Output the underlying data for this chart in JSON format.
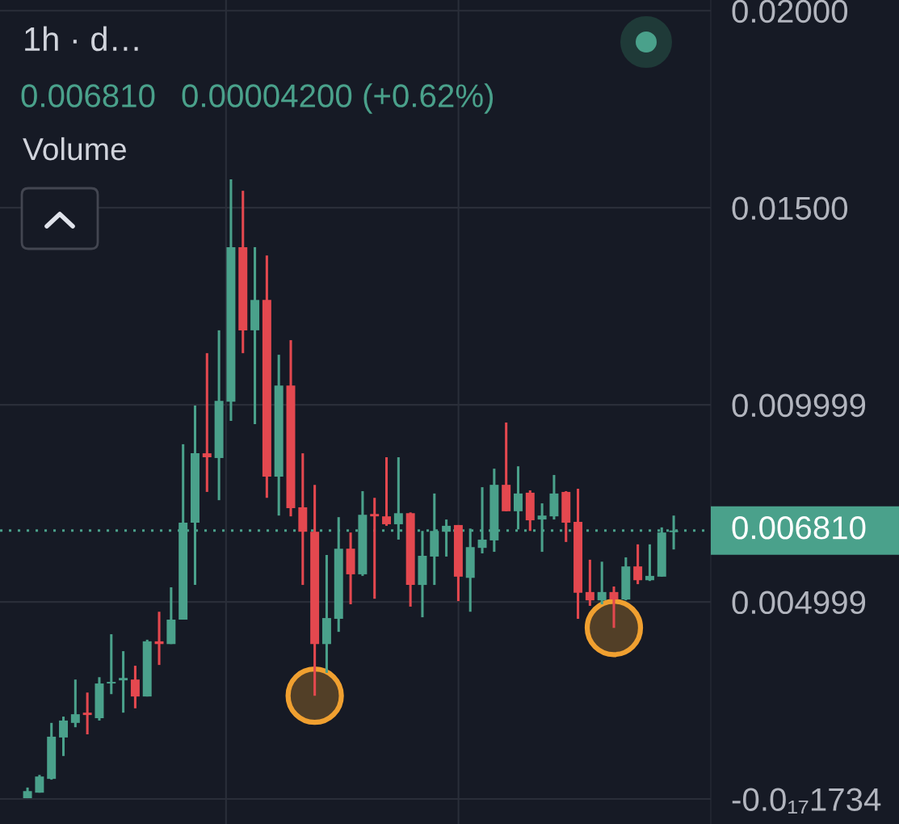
{
  "chart_data": {
    "type": "candlestick",
    "title": "1h · d…",
    "annotations": [
      "0.006810",
      "0.00004200 (+0.62%)",
      "Volume"
    ],
    "categories": [
      null,
      null,
      null,
      null,
      null,
      null,
      null,
      null,
      null,
      null,
      null,
      null,
      null,
      null,
      null,
      null,
      null,
      null,
      null,
      null,
      null,
      null,
      null,
      null,
      null,
      null,
      null,
      null,
      null,
      null,
      null,
      null,
      null,
      null,
      null,
      null,
      null,
      null,
      null,
      null,
      null,
      null,
      null,
      null,
      null,
      null,
      null,
      null,
      null,
      null,
      null,
      null,
      null,
      null,
      null
    ],
    "ohlc": [
      [
        2e-05,
        0.00029,
        2e-05,
        0.0002
      ],
      [
        0.00016,
        0.00061,
        0.00016,
        0.00057
      ],
      [
        0.00051,
        0.00193,
        0.00049,
        0.00158
      ],
      [
        0.00156,
        0.00209,
        0.00109,
        0.00199
      ],
      [
        0.00193,
        0.00303,
        0.00182,
        0.00215
      ],
      [
        0.00219,
        0.0027,
        0.00164,
        0.00213
      ],
      [
        0.00205,
        0.00309,
        0.00199,
        0.00293
      ],
      [
        0.00293,
        0.00418,
        0.00266,
        0.00297
      ],
      [
        0.00301,
        0.00375,
        0.00219,
        0.00307
      ],
      [
        0.00303,
        0.00338,
        0.0023,
        0.0026
      ],
      [
        0.0026,
        0.00404,
        0.0026,
        0.004
      ],
      [
        0.004,
        0.00475,
        0.0034,
        0.00393
      ],
      [
        0.00393,
        0.00537,
        0.00393,
        0.00455
      ],
      [
        0.00455,
        0.009,
        0.00455,
        0.00701
      ],
      [
        0.00701,
        0.00998,
        0.00543,
        0.00877
      ],
      [
        0.00877,
        0.01131,
        0.00779,
        0.00867
      ],
      [
        0.00865,
        0.01189,
        0.00758,
        0.0101
      ],
      [
        0.01008,
        0.01572,
        0.00959,
        0.014
      ],
      [
        0.014,
        0.01543,
        0.01131,
        0.01189
      ],
      [
        0.01189,
        0.014,
        0.00951,
        0.01266
      ],
      [
        0.01266,
        0.01379,
        0.00764,
        0.00818
      ],
      [
        0.00818,
        0.01127,
        0.00719,
        0.01049
      ],
      [
        0.01049,
        0.01164,
        0.00717,
        0.00738
      ],
      [
        0.0074,
        0.00877,
        0.00543,
        0.00678
      ],
      [
        0.00678,
        0.00797,
        0.00262,
        0.00393
      ],
      [
        0.00393,
        0.00619,
        0.0032,
        0.00459
      ],
      [
        0.00457,
        0.00715,
        0.00424,
        0.00635
      ],
      [
        0.00635,
        0.00676,
        0.00494,
        0.0057
      ],
      [
        0.0057,
        0.00781,
        0.00566,
        0.00721
      ],
      [
        0.00723,
        0.00764,
        0.00508,
        0.00717
      ],
      [
        0.00717,
        0.00867,
        0.00693,
        0.00697
      ],
      [
        0.00697,
        0.00867,
        0.00658,
        0.00725
      ],
      [
        0.00725,
        0.00727,
        0.00488,
        0.00543
      ],
      [
        0.00543,
        0.0068,
        0.00461,
        0.00617
      ],
      [
        0.00615,
        0.00775,
        0.00543,
        0.0068
      ],
      [
        0.00678,
        0.00709,
        0.00615,
        0.00693
      ],
      [
        0.00695,
        0.00695,
        0.00502,
        0.00564
      ],
      [
        0.00561,
        0.00686,
        0.00475,
        0.00639
      ],
      [
        0.00637,
        0.00791,
        0.00623,
        0.00658
      ],
      [
        0.00656,
        0.00838,
        0.00627,
        0.00797
      ],
      [
        0.00797,
        0.00955,
        0.0073,
        0.0073
      ],
      [
        0.0073,
        0.00844,
        0.00684,
        0.00775
      ],
      [
        0.00777,
        0.00783,
        0.0068,
        0.00707
      ],
      [
        0.00709,
        0.0075,
        0.00627,
        0.00719
      ],
      [
        0.00717,
        0.00822,
        0.00709,
        0.00775
      ],
      [
        0.00779,
        0.00781,
        0.00652,
        0.00701
      ],
      [
        0.00703,
        0.00787,
        0.00457,
        0.00523
      ],
      [
        0.00525,
        0.00607,
        0.0049,
        0.00504
      ],
      [
        0.00504,
        0.00602,
        0.00494,
        0.00525
      ],
      [
        0.00525,
        0.00539,
        0.00434,
        0.00506
      ],
      [
        0.00506,
        0.00613,
        0.00504,
        0.0059
      ],
      [
        0.0059,
        0.00646,
        0.00545,
        0.00555
      ],
      [
        0.00555,
        0.00646,
        0.00553,
        0.00566
      ],
      [
        0.00564,
        0.00689,
        0.00564,
        0.00676
      ],
      [
        0.00677,
        0.00719,
        0.00633,
        0.00681
      ]
    ],
    "colors": [
      "#4aa18b",
      "#4aa18b",
      "#4aa18b",
      "#4aa18b",
      "#4aa18b",
      "#e4484f",
      "#4aa18b",
      "#4aa18b",
      "#4aa18b",
      "#e4484f",
      "#4aa18b",
      "#e4484f",
      "#4aa18b",
      "#4aa18b",
      "#4aa18b",
      "#e4484f",
      "#4aa18b",
      "#4aa18b",
      "#e4484f",
      "#4aa18b",
      "#e4484f",
      "#4aa18b",
      "#e4484f",
      "#e4484f",
      "#e4484f",
      "#4aa18b",
      "#4aa18b",
      "#e4484f",
      "#4aa18b",
      "#e4484f",
      "#e4484f",
      "#4aa18b",
      "#e4484f",
      "#4aa18b",
      "#4aa18b",
      "#4aa18b",
      "#e4484f",
      "#4aa18b",
      "#4aa18b",
      "#4aa18b",
      "#e4484f",
      "#4aa18b",
      "#e4484f",
      "#4aa18b",
      "#4aa18b",
      "#e4484f",
      "#e4484f",
      "#e4484f",
      "#4aa18b",
      "#e4484f",
      "#4aa18b",
      "#e4484f",
      "#4aa18b",
      "#4aa18b",
      "#4aa18b"
    ],
    "ylim": [
      -0.000635,
      0.02027
    ],
    "yticks": [
      {
        "value": -1.734e-19,
        "label": "-0.0₁₇1734"
      },
      0.004999,
      0.009999,
      {
        "value": 0.015,
        "label": "0.01500"
      },
      {
        "value": 0.02,
        "label": "0.02000"
      }
    ],
    "grid": true,
    "tick_labels": "y",
    "ref_lines": [
      {
        "axis": "y",
        "value": 0.00681,
        "label": "0.006810",
        "color": "#4aa18b",
        "line_style": "dotted"
      }
    ]
  }
}
